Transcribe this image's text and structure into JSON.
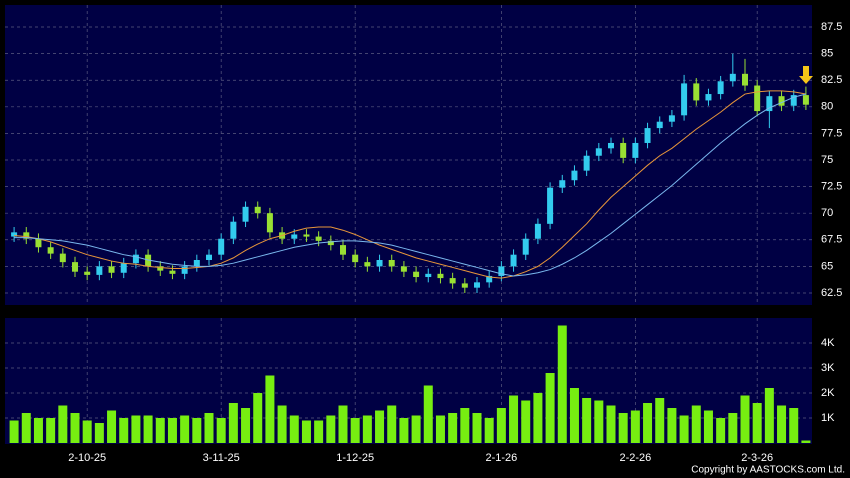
{
  "chart_data": [
    {
      "type": "candlestick",
      "open": [
        67.8,
        68.2,
        67.6,
        66.8,
        66.2,
        65.4,
        64.5,
        64.2,
        65.0,
        64.4,
        65.3,
        66.1,
        65.0,
        64.6,
        64.3,
        65.0,
        65.6,
        66.1,
        67.6,
        69.2,
        70.6,
        70.0,
        68.2,
        67.6,
        68.0,
        67.8,
        67.4,
        67.0,
        66.1,
        65.4,
        65.0,
        65.6,
        65.0,
        64.5,
        64.0,
        64.3,
        63.9,
        63.4,
        63.0,
        63.5,
        64.1,
        65.0,
        66.1,
        67.6,
        69.0,
        72.4,
        73.1,
        74.0,
        75.4,
        76.1,
        76.6,
        75.2,
        76.6,
        78.0,
        78.6,
        79.2,
        82.2,
        80.6,
        81.2,
        82.4,
        83.1,
        82.0,
        79.6,
        81.0,
        80.1,
        81.1
      ],
      "high": [
        68.7,
        68.7,
        68.1,
        67.3,
        66.7,
        65.9,
        65.0,
        65.5,
        65.5,
        65.8,
        66.6,
        66.6,
        65.5,
        65.1,
        65.5,
        66.1,
        66.6,
        68.1,
        69.7,
        71.1,
        71.1,
        70.5,
        68.7,
        68.5,
        68.5,
        68.3,
        67.9,
        67.5,
        66.6,
        65.9,
        66.1,
        66.1,
        65.5,
        65.0,
        64.8,
        64.8,
        64.4,
        63.9,
        64.0,
        64.6,
        65.5,
        66.6,
        68.1,
        69.5,
        72.9,
        73.6,
        74.5,
        75.9,
        76.6,
        77.1,
        77.1,
        77.1,
        78.5,
        79.1,
        79.7,
        83.0,
        82.7,
        81.7,
        82.9,
        85.0,
        84.5,
        82.5,
        81.5,
        81.5,
        81.6,
        81.9
      ],
      "low": [
        67.3,
        67.1,
        66.3,
        65.7,
        64.9,
        64.0,
        63.7,
        63.7,
        63.9,
        63.9,
        64.8,
        64.5,
        64.1,
        63.8,
        63.8,
        64.5,
        65.1,
        65.6,
        67.1,
        68.7,
        69.5,
        67.7,
        67.1,
        67.1,
        67.3,
        66.9,
        66.5,
        65.6,
        64.9,
        64.5,
        64.5,
        64.5,
        64.0,
        63.5,
        63.5,
        63.4,
        62.9,
        62.5,
        62.5,
        63.0,
        63.6,
        64.5,
        65.6,
        67.1,
        68.5,
        71.9,
        72.6,
        73.5,
        74.9,
        75.6,
        74.7,
        74.7,
        76.1,
        77.5,
        78.1,
        78.7,
        80.1,
        80.1,
        80.7,
        81.9,
        81.5,
        79.1,
        78.0,
        79.6,
        79.6,
        79.7
      ],
      "close": [
        68.2,
        67.6,
        66.8,
        66.2,
        65.4,
        64.5,
        64.2,
        65.0,
        64.4,
        65.3,
        66.1,
        65.0,
        64.6,
        64.3,
        65.0,
        65.6,
        66.1,
        67.6,
        69.2,
        70.6,
        70.0,
        68.2,
        67.6,
        68.0,
        67.8,
        67.4,
        67.0,
        66.1,
        65.4,
        65.0,
        65.6,
        65.0,
        64.5,
        64.0,
        64.3,
        63.9,
        63.4,
        63.0,
        63.5,
        64.1,
        65.0,
        66.1,
        67.6,
        69.0,
        72.4,
        73.1,
        74.0,
        75.4,
        76.1,
        76.6,
        75.2,
        76.6,
        78.0,
        78.6,
        79.2,
        82.2,
        80.6,
        81.2,
        82.4,
        83.1,
        82.0,
        79.6,
        81.0,
        80.1,
        81.1,
        80.2
      ],
      "up_color": "#33ccee",
      "down_color": "#99e033",
      "series": [
        {
          "color": "#e8963a",
          "values": [
            67.9,
            67.8,
            67.6,
            67.3,
            66.9,
            66.5,
            66.1,
            65.8,
            65.5,
            65.3,
            65.2,
            65.0,
            64.9,
            64.8,
            64.8,
            64.9,
            65.0,
            65.3,
            65.8,
            66.5,
            67.1,
            67.6,
            67.9,
            68.3,
            68.6,
            68.7,
            68.7,
            68.4,
            68.0,
            67.5,
            67.0,
            66.6,
            66.2,
            65.8,
            65.5,
            65.2,
            64.9,
            64.6,
            64.3,
            64.0,
            63.9,
            64.1,
            64.5,
            65.0,
            65.8,
            66.8,
            67.9,
            69.0,
            70.3,
            71.5,
            72.5,
            73.5,
            74.5,
            75.4,
            76.1,
            77.0,
            77.9,
            78.7,
            79.5,
            80.4,
            81.2,
            81.4,
            81.5,
            81.5,
            81.4,
            81.2
          ]
        },
        {
          "color": "#7ab8ee",
          "values": [
            67.7,
            67.7,
            67.6,
            67.5,
            67.4,
            67.2,
            67.0,
            66.7,
            66.4,
            66.1,
            65.9,
            65.6,
            65.4,
            65.2,
            65.1,
            65.0,
            65.0,
            65.1,
            65.3,
            65.6,
            65.9,
            66.2,
            66.5,
            66.8,
            67.0,
            67.2,
            67.3,
            67.4,
            67.4,
            67.3,
            67.2,
            67.0,
            66.7,
            66.4,
            66.1,
            65.8,
            65.5,
            65.2,
            64.9,
            64.6,
            64.3,
            64.1,
            64.2,
            64.4,
            64.7,
            65.2,
            65.8,
            66.5,
            67.3,
            68.1,
            69.0,
            69.9,
            70.8,
            71.7,
            72.6,
            73.6,
            74.6,
            75.6,
            76.6,
            77.5,
            78.4,
            79.2,
            79.9,
            80.4,
            80.9,
            81.2
          ]
        }
      ],
      "ylim": [
        61.37,
        89.57
      ],
      "yticks": [
        62.5,
        65,
        67.5,
        70,
        72.5,
        75,
        77.5,
        80,
        82.5,
        85,
        87.5
      ],
      "grid": true
    },
    {
      "type": "bar",
      "color": "#77ee11",
      "categories": [
        null,
        null,
        null,
        null,
        null,
        null,
        "2-10-25",
        null,
        null,
        null,
        null,
        null,
        null,
        null,
        null,
        null,
        null,
        "3-11-25",
        null,
        null,
        null,
        null,
        null,
        null,
        null,
        null,
        null,
        null,
        "1-12-25",
        null,
        null,
        null,
        null,
        null,
        null,
        null,
        null,
        null,
        null,
        null,
        "2-1-26",
        null,
        null,
        null,
        null,
        null,
        null,
        null,
        null,
        null,
        null,
        "2-2-26",
        null,
        null,
        null,
        null,
        null,
        null,
        null,
        null,
        null,
        "2-3-26",
        null,
        null,
        null,
        null
      ],
      "values": [
        900,
        1200,
        1000,
        1000,
        1500,
        1200,
        900,
        800,
        1300,
        1000,
        1100,
        1100,
        1000,
        1000,
        1100,
        1000,
        1200,
        1000,
        1600,
        1400,
        2000,
        2700,
        1500,
        1100,
        900,
        900,
        1100,
        1500,
        1000,
        1100,
        1300,
        1500,
        1000,
        1100,
        2300,
        1100,
        1200,
        1400,
        1200,
        1000,
        1400,
        1900,
        1700,
        2000,
        2800,
        4700,
        2200,
        1800,
        1700,
        1500,
        1200,
        1300,
        1600,
        1800,
        1400,
        1100,
        1500,
        1300,
        1000,
        1200,
        1900,
        1600,
        2200,
        1500,
        1400,
        100
      ],
      "ylim": [
        0,
        5000
      ],
      "yticks": [
        {
          "value": 1000,
          "label": "1K"
        },
        {
          "value": 2000,
          "label": "2K"
        },
        {
          "value": 3000,
          "label": "3K"
        },
        {
          "value": 4000,
          "label": "4K"
        }
      ],
      "grid": true
    }
  ],
  "copyright": "Copyright by AASTOCKS.com Ltd."
}
